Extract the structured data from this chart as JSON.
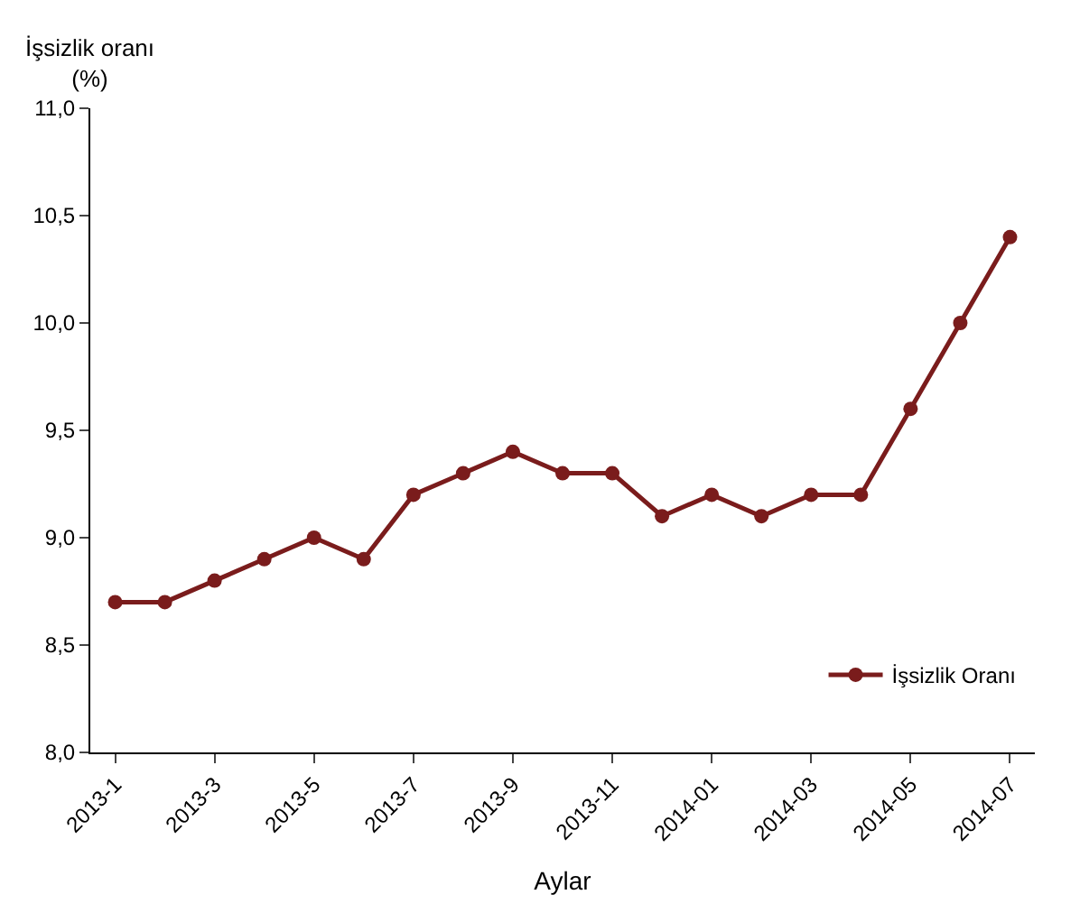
{
  "chart_data": {
    "type": "line",
    "ylabel": "İşsizlik oranı\n(%)",
    "xlabel": "Aylar",
    "categories": [
      "2013-1",
      null,
      "2013-3",
      null,
      "2013-5",
      null,
      "2013-7",
      null,
      "2013-9",
      null,
      "2013-11",
      null,
      "2014-01",
      null,
      "2014-03",
      null,
      "2014-05",
      null,
      "2014-07"
    ],
    "series": [
      {
        "name": "İşsizlik Oranı",
        "color": "#7a1c1c",
        "values": [
          8.7,
          8.7,
          8.8,
          8.9,
          9.0,
          8.9,
          9.2,
          9.3,
          9.4,
          9.3,
          9.3,
          9.1,
          9.2,
          9.1,
          9.2,
          9.2,
          9.6,
          10.0,
          10.4
        ]
      }
    ],
    "ylim": [
      8,
      11
    ],
    "yticks": [
      {
        "value": 8,
        "label": "8,0"
      },
      {
        "value": 8.5,
        "label": "8,5"
      },
      {
        "value": 9,
        "label": "9,0"
      },
      {
        "value": 9.5,
        "label": "9,5"
      },
      {
        "value": 10,
        "label": "10,0"
      },
      {
        "value": 10.5,
        "label": "10,5"
      },
      {
        "value": 11,
        "label": "11,0"
      }
    ],
    "legend": "bottom right",
    "marker": "circle",
    "line_style": "solid"
  }
}
